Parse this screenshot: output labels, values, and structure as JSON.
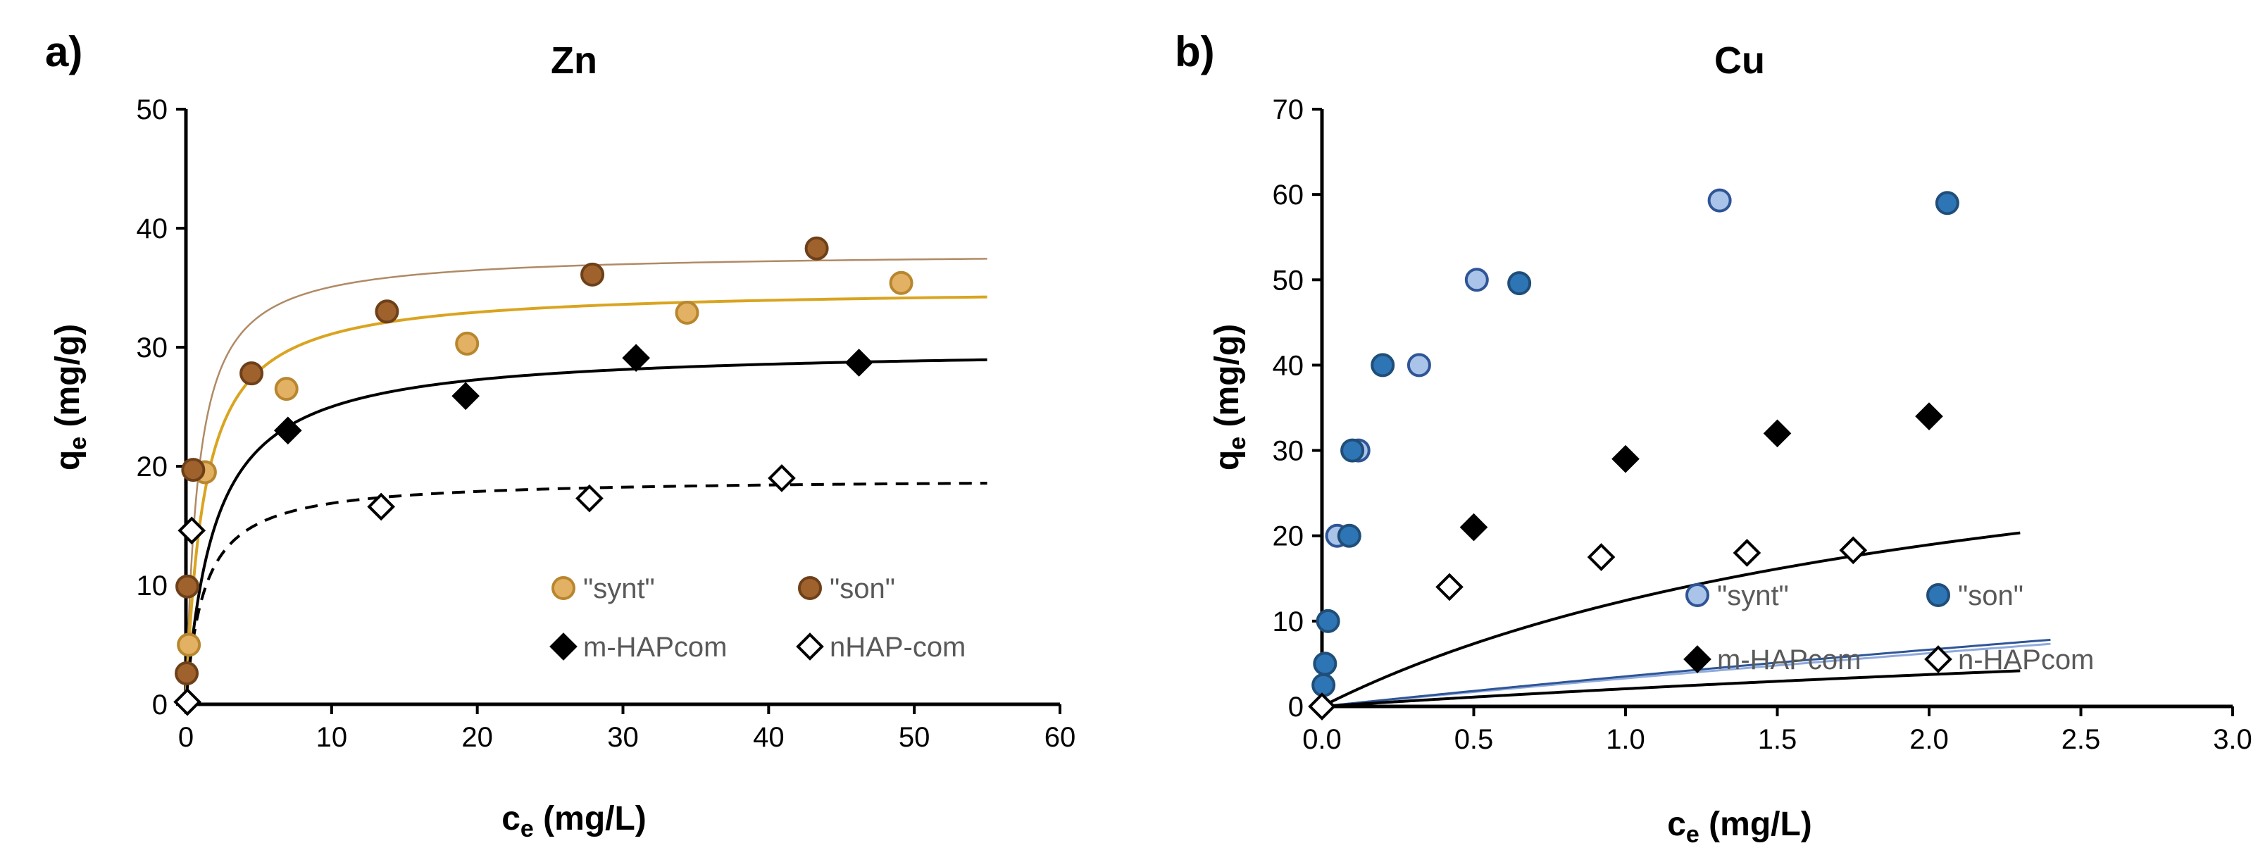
{
  "chart_data": [
    {
      "panel": "a)",
      "title": "Zn",
      "type": "scatter",
      "xlabel_main": "c",
      "xlabel_sub": "e",
      "xlabel_unit": " (mg/L)",
      "ylabel_main": "q",
      "ylabel_sub": "e",
      "ylabel_unit": " (mg/g)",
      "xlim": [
        0,
        60
      ],
      "ylim": [
        0,
        50
      ],
      "xticks": [
        0,
        10,
        20,
        30,
        40,
        50,
        60
      ],
      "yticks": [
        0,
        10,
        20,
        30,
        40,
        50
      ],
      "xtick_labels": [
        "0",
        "10",
        "20",
        "30",
        "40",
        "50",
        "60"
      ],
      "ytick_labels": [
        "0",
        "10",
        "20",
        "30",
        "40",
        "50"
      ],
      "legend_position": "bottom-right",
      "series": [
        {
          "name": "\"synt\"",
          "marker": "circle",
          "fill": "#E3B163",
          "stroke": "#B8862E",
          "x": [
            0.2,
            1.3,
            6.9,
            19.3,
            34.4,
            49.1
          ],
          "y": [
            5,
            19.5,
            26.5,
            30.3,
            32.9,
            35.4
          ]
        },
        {
          "name": "\"son\"",
          "marker": "circle",
          "fill": "#A0622D",
          "stroke": "#6E4019",
          "x": [
            0.05,
            0.1,
            0.5,
            4.5,
            13.8,
            27.9,
            43.3
          ],
          "y": [
            2.6,
            9.9,
            19.7,
            27.8,
            33,
            36.1,
            38.3
          ]
        },
        {
          "name": "m-HAPcom",
          "marker": "diamond",
          "fill": "#000000",
          "stroke": "#000000",
          "x": [
            7,
            19.2,
            30.9,
            46.2
          ],
          "y": [
            23,
            25.9,
            29.1,
            28.7
          ]
        },
        {
          "name": "nHAP-com",
          "marker": "diamond",
          "fill": "#FFFFFF",
          "stroke": "#000000",
          "x": [
            0.1,
            0.4,
            13.4,
            27.7,
            40.9
          ],
          "y": [
            0.2,
            14.6,
            16.6,
            17.3,
            19
          ]
        }
      ],
      "fit_curves": [
        {
          "name": "son-fit",
          "qmax": 38,
          "K": 1.2,
          "color": "#B08A65",
          "width": 2.5,
          "dash": ""
        },
        {
          "name": "synt-fit",
          "qmax": 35,
          "K": 0.8,
          "color": "#D9A420",
          "width": 4,
          "dash": ""
        },
        {
          "name": "m-HAPcom-fit",
          "qmax": 30,
          "K": 0.5,
          "color": "#000000",
          "width": 4,
          "dash": ""
        },
        {
          "name": "nHAP-com-fit",
          "qmax": 19,
          "K": 0.8,
          "color": "#000000",
          "width": 4,
          "dash": "18,12"
        }
      ],
      "fit_xmax": 55
    },
    {
      "panel": "b)",
      "title": "Cu",
      "type": "scatter",
      "xlabel_main": "c",
      "xlabel_sub": "e",
      "xlabel_unit": " (mg/L)",
      "ylabel_main": "q",
      "ylabel_sub": "e",
      "ylabel_unit": " (mg/g)",
      "xlim": [
        0,
        3
      ],
      "ylim": [
        0,
        70
      ],
      "xticks": [
        0,
        0.5,
        1,
        1.5,
        2,
        2.5,
        3
      ],
      "yticks": [
        0,
        10,
        20,
        30,
        40,
        50,
        60,
        70
      ],
      "xtick_labels": [
        "0.0",
        "0.5",
        "1.0",
        "1.5",
        "2.0",
        "2.5",
        "3.0"
      ],
      "ytick_labels": [
        "0",
        "10",
        "20",
        "30",
        "40",
        "50",
        "60",
        "70"
      ],
      "legend_position": "bottom-right",
      "series": [
        {
          "name": "\"synt\"",
          "marker": "circle",
          "fill": "#A9C4E8",
          "stroke": "#2F5597",
          "x": [
            0.05,
            0.12,
            0.32,
            0.51,
            1.31
          ],
          "y": [
            20,
            30,
            40,
            50,
            59.3
          ]
        },
        {
          "name": "\"son\"",
          "marker": "circle",
          "fill": "#2E75B6",
          "stroke": "#1F4E79",
          "x": [
            0.005,
            0.01,
            0.02,
            0.09,
            0.1,
            0.2,
            0.65,
            2.06
          ],
          "y": [
            2.5,
            5,
            10,
            20,
            30,
            40,
            49.6,
            59
          ]
        },
        {
          "name": "m-HAPcom",
          "marker": "diamond",
          "fill": "#000000",
          "stroke": "#000000",
          "x": [
            0.5,
            1,
            1.5,
            2
          ],
          "y": [
            21,
            29,
            32,
            34
          ]
        },
        {
          "name": "n-HAPcom",
          "marker": "diamond",
          "fill": "#FFFFFF",
          "stroke": "#000000",
          "x": [
            0,
            0.42,
            0.92,
            1.4,
            1.75
          ],
          "y": [
            0,
            14,
            17.5,
            18,
            18.3
          ]
        }
      ],
      "fit_curves": [
        {
          "name": "synt-fit",
          "qmax": 60,
          "K": 0.058,
          "color": "#8FAADC",
          "width": 3,
          "dash": ""
        },
        {
          "name": "son-fit",
          "qmax": 60.3,
          "K": 0.062,
          "color": "#2F5597",
          "width": 3,
          "dash": ""
        },
        {
          "name": "m-HAPcom-fit",
          "qmax": 40,
          "K": 0.45,
          "color": "#000000",
          "width": 4,
          "dash": ""
        },
        {
          "name": "n-HAPcom-fit",
          "qmax": 19.3,
          "K": 0.12,
          "color": "#000000",
          "width": 4,
          "dash": ""
        }
      ],
      "fit_xmax": [
        2.4,
        2.4,
        2.3,
        2.3
      ]
    }
  ]
}
